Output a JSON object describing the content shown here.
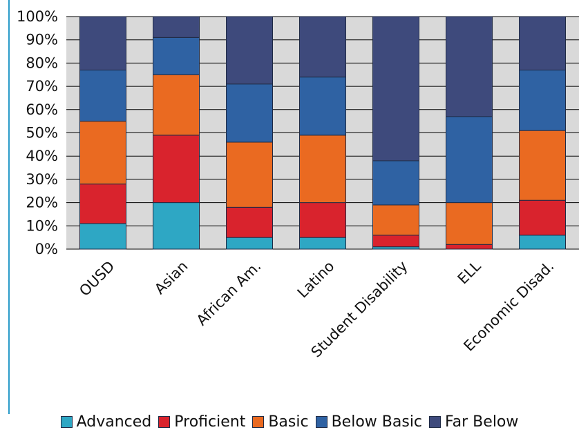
{
  "chart_data": {
    "type": "bar",
    "stacked": true,
    "orientation": "vertical",
    "grid": true,
    "legend_position": "bottom",
    "title": "",
    "xlabel": "",
    "ylabel": "",
    "ylim": [
      0,
      100
    ],
    "y_ticks": [
      "0%",
      "10%",
      "20%",
      "30%",
      "40%",
      "50%",
      "60%",
      "70%",
      "80%",
      "90%",
      "100%"
    ],
    "categories": [
      "OUSD",
      "Asian",
      "African Am.",
      "Latino",
      "Student Disability",
      "ELL",
      "Economic Disad."
    ],
    "series": [
      {
        "name": "Advanced",
        "color": "#2ea7c4",
        "values": [
          11,
          20,
          5,
          5,
          1,
          0,
          6
        ]
      },
      {
        "name": "Proficient",
        "color": "#d9232d",
        "values": [
          17,
          29,
          13,
          15,
          5,
          2,
          15
        ]
      },
      {
        "name": "Basic",
        "color": "#ea6a21",
        "values": [
          27,
          26,
          28,
          29,
          13,
          18,
          30
        ]
      },
      {
        "name": "Below Basic",
        "color": "#2f62a3",
        "values": [
          22,
          16,
          25,
          25,
          19,
          37,
          26
        ]
      },
      {
        "name": "Far Below",
        "color": "#3e4a7c",
        "values": [
          23,
          9,
          29,
          26,
          62,
          43,
          23
        ]
      }
    ],
    "colors": {
      "axis": "#2a9bc9",
      "band": "#d9d9d9",
      "bar_stroke": "#1f2a44"
    }
  }
}
